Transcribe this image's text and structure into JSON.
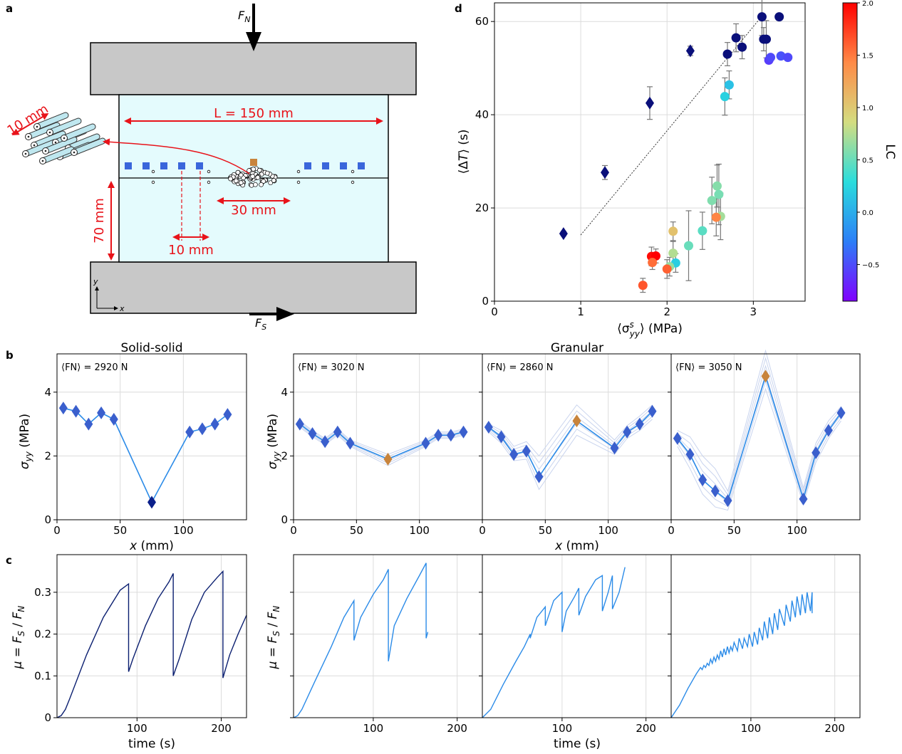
{
  "panel_labels": {
    "a": "a",
    "b": "b",
    "c": "c",
    "d": "d"
  },
  "schematic": {
    "force_normal": "F",
    "force_normal_sub": "N",
    "force_shear": "F",
    "force_shear_sub": "S",
    "length_label": "L = 150 mm",
    "height_label": "70 mm",
    "spacing_label": "10 mm",
    "gouge_label": "30 mm",
    "rod_label": "10 mm",
    "axis_y": "y",
    "axis_x": "x",
    "colors": {
      "platen": "#c8c8c8",
      "sample": "#e4fbfd",
      "sensor": "#3a66db",
      "gouge_sensor": "#c8843c",
      "dimension": "#e8131a"
    }
  },
  "panel_b": {
    "titles": [
      "Solid-solid",
      "Granular"
    ],
    "ylabel": "σyy (MPa)",
    "xlabel": "x (mm)",
    "xticks": [
      "0",
      "50",
      "100"
    ],
    "yticks": [
      "0",
      "2",
      "4"
    ],
    "annotations": [
      "⟨FN⟩ = 2920 N",
      "⟨FN⟩ = 3020 N",
      "⟨FN⟩ = 2860 N",
      "⟨FN⟩ = 3050 N"
    ]
  },
  "panel_c": {
    "ylabel": "μ = FS / FN",
    "xlabel": "time (s)",
    "xticks": [
      "100",
      "200"
    ],
    "yticks": [
      "0",
      "0.1",
      "0.2",
      "0.3"
    ]
  },
  "panel_d": {
    "xlabel": "⟨σyy^s⟩ (MPa)",
    "ylabel": "⟨ΔT⟩ (s)",
    "xticks": [
      "0",
      "1",
      "2",
      "3"
    ],
    "yticks": [
      "0",
      "20",
      "40",
      "60"
    ],
    "colorbar_label": "LC",
    "colorbar_ticks": [
      "2.0",
      "1.5",
      "1.0",
      "0.5",
      "0.0",
      "−0.5"
    ]
  },
  "chart_data": [
    {
      "id": "b1",
      "type": "line",
      "title": "Solid-solid",
      "xlabel": "x (mm)",
      "ylabel": "σyy (MPa)",
      "xlim": [
        0,
        150
      ],
      "ylim": [
        0,
        5.2
      ],
      "x": [
        5,
        15,
        25,
        35,
        45,
        75,
        105,
        115,
        125,
        135
      ],
      "values": [
        3.5,
        3.4,
        3.0,
        3.35,
        3.15,
        0.55,
        2.75,
        2.85,
        3.0,
        3.3
      ],
      "gouge_index": 5,
      "gouge_color": "#0b1f8a",
      "line_color": "#2b8be8",
      "marker_color": "#3a5fcd",
      "envelope": []
    },
    {
      "id": "b2",
      "type": "line",
      "xlabel": "x (mm)",
      "xlim": [
        0,
        150
      ],
      "ylim": [
        0,
        5.2
      ],
      "x": [
        5,
        15,
        25,
        35,
        45,
        75,
        105,
        115,
        125,
        135
      ],
      "values": [
        3.0,
        2.7,
        2.45,
        2.75,
        2.4,
        1.9,
        2.4,
        2.65,
        2.65,
        2.75
      ],
      "gouge_index": 5,
      "gouge_color": "#c8843c",
      "line_color": "#2b8be8",
      "marker_color": "#3a5fcd",
      "envelope": [
        [
          3.1,
          2.8,
          2.55,
          2.85,
          2.5,
          2.05,
          2.5,
          2.75,
          2.75,
          2.85
        ],
        [
          2.9,
          2.6,
          2.35,
          2.65,
          2.3,
          1.7,
          2.3,
          2.55,
          2.55,
          2.65
        ]
      ]
    },
    {
      "id": "b3",
      "type": "line",
      "xlabel": "x (mm)",
      "xlim": [
        0,
        150
      ],
      "ylim": [
        0,
        5.2
      ],
      "x": [
        5,
        15,
        25,
        35,
        45,
        75,
        105,
        115,
        125,
        135
      ],
      "values": [
        2.9,
        2.6,
        2.05,
        2.15,
        1.35,
        3.1,
        2.25,
        2.75,
        3.0,
        3.4
      ],
      "gouge_index": 5,
      "gouge_color": "#c8843c",
      "line_color": "#2b8be8",
      "marker_color": "#3a5fcd",
      "envelope": [
        [
          3.0,
          2.8,
          2.3,
          2.45,
          2.0,
          3.6,
          2.5,
          2.95,
          3.25,
          3.6
        ],
        [
          2.75,
          2.4,
          1.85,
          1.9,
          0.95,
          2.65,
          2.05,
          2.55,
          2.8,
          3.15
        ]
      ]
    },
    {
      "id": "b4",
      "type": "line",
      "xlabel": "x (mm)",
      "xlim": [
        0,
        150
      ],
      "ylim": [
        0,
        5.2
      ],
      "x": [
        5,
        15,
        25,
        35,
        45,
        75,
        105,
        115,
        125,
        135
      ],
      "values": [
        2.55,
        2.05,
        1.25,
        0.9,
        0.6,
        4.5,
        0.65,
        2.1,
        2.8,
        3.35
      ],
      "gouge_index": 5,
      "gouge_color": "#c8843c",
      "line_color": "#2b8be8",
      "marker_color": "#3a5fcd",
      "envelope": [
        [
          2.8,
          2.6,
          2.0,
          1.6,
          0.9,
          5.3,
          1.0,
          2.4,
          3.1,
          3.55
        ],
        [
          2.3,
          1.6,
          0.8,
          0.4,
          0.3,
          4.1,
          0.5,
          1.8,
          2.55,
          3.1
        ]
      ]
    },
    {
      "id": "c1",
      "type": "line",
      "xlabel": "time (s)",
      "ylabel": "μ = FS / FN",
      "xlim": [
        5,
        230
      ],
      "ylim": [
        0,
        0.39
      ],
      "color": "#0b1f70",
      "x": [
        5,
        10,
        15,
        20,
        40,
        60,
        80,
        90,
        90,
        95,
        110,
        125,
        138,
        143,
        143,
        150,
        165,
        180,
        195,
        202,
        202,
        210,
        220,
        230
      ],
      "values": [
        0,
        0.005,
        0.02,
        0.045,
        0.15,
        0.24,
        0.305,
        0.32,
        0.11,
        0.14,
        0.22,
        0.285,
        0.325,
        0.345,
        0.1,
        0.14,
        0.235,
        0.3,
        0.335,
        0.35,
        0.095,
        0.15,
        0.2,
        0.245
      ]
    },
    {
      "id": "c2",
      "type": "line",
      "xlabel": "time (s)",
      "xlim": [
        5,
        230
      ],
      "ylim": [
        0,
        0.39
      ],
      "color": "#2b8be8",
      "x": [
        5,
        10,
        15,
        30,
        50,
        65,
        77,
        77,
        85,
        100,
        112,
        118,
        118,
        125,
        140,
        155,
        163,
        163,
        165
      ],
      "values": [
        0,
        0.005,
        0.02,
        0.085,
        0.17,
        0.24,
        0.28,
        0.185,
        0.24,
        0.295,
        0.33,
        0.355,
        0.135,
        0.22,
        0.285,
        0.34,
        0.37,
        0.19,
        0.205
      ]
    },
    {
      "id": "c3",
      "type": "line",
      "xlabel": "time (s)",
      "xlim": [
        5,
        230
      ],
      "ylim": [
        0,
        0.39
      ],
      "color": "#2b8be8",
      "x": [
        5,
        15,
        30,
        45,
        55,
        62,
        62,
        70,
        80,
        80,
        90,
        100,
        100,
        105,
        115,
        120,
        120,
        128,
        140,
        148,
        148,
        155,
        160,
        160,
        168,
        175
      ],
      "values": [
        0,
        0.02,
        0.08,
        0.135,
        0.17,
        0.2,
        0.19,
        0.24,
        0.265,
        0.22,
        0.28,
        0.3,
        0.205,
        0.255,
        0.29,
        0.31,
        0.245,
        0.29,
        0.33,
        0.34,
        0.255,
        0.3,
        0.34,
        0.26,
        0.3,
        0.36
      ]
    },
    {
      "id": "c4",
      "type": "line",
      "xlabel": "time (s)",
      "xlim": [
        5,
        230
      ],
      "ylim": [
        0,
        0.39
      ],
      "color": "#2b8be8",
      "x": [
        5,
        15,
        25,
        35,
        40,
        42,
        44,
        46,
        48,
        50,
        52,
        54,
        56,
        58,
        60,
        62,
        64,
        66,
        68,
        70,
        72,
        74,
        76,
        78,
        80,
        84,
        86,
        90,
        92,
        96,
        98,
        102,
        104,
        108,
        110,
        114,
        116,
        120,
        122,
        126,
        128,
        132,
        134,
        140,
        142,
        147,
        149,
        153,
        155,
        159,
        161,
        165,
        167,
        171,
        173,
        173
      ],
      "values": [
        0,
        0.03,
        0.07,
        0.105,
        0.12,
        0.115,
        0.125,
        0.12,
        0.13,
        0.125,
        0.14,
        0.13,
        0.145,
        0.135,
        0.15,
        0.14,
        0.16,
        0.145,
        0.165,
        0.15,
        0.17,
        0.155,
        0.17,
        0.16,
        0.18,
        0.16,
        0.19,
        0.165,
        0.19,
        0.17,
        0.2,
        0.17,
        0.205,
        0.175,
        0.215,
        0.185,
        0.23,
        0.19,
        0.24,
        0.2,
        0.25,
        0.21,
        0.26,
        0.22,
        0.27,
        0.23,
        0.28,
        0.24,
        0.29,
        0.245,
        0.295,
        0.25,
        0.3,
        0.255,
        0.3,
        0.25
      ]
    },
    {
      "id": "d",
      "type": "scatter",
      "xlabel": "⟨σyy^s⟩ (MPa)",
      "ylabel": "⟨ΔT⟩ (s)",
      "xlim": [
        0,
        3.6
      ],
      "ylim": [
        0,
        64
      ],
      "colorbar": {
        "label": "LC",
        "range": [
          -0.85,
          2.0
        ],
        "colormap": "rainbow"
      },
      "fit_line": {
        "x": [
          1.0,
          3.12
        ],
        "y": [
          14.2,
          61.6
        ]
      },
      "solid_solid_points": [
        {
          "x": 0.8,
          "y": 14.5,
          "err": 0.5
        },
        {
          "x": 1.28,
          "y": 27.6,
          "err": 1.5
        },
        {
          "x": 1.8,
          "y": 42.5,
          "err": 3.5
        },
        {
          "x": 2.27,
          "y": 53.7,
          "err": 1.0
        }
      ],
      "granular_points": [
        {
          "x": 2.7,
          "y": 53.0,
          "err": 2.5,
          "c": -0.72
        },
        {
          "x": 2.8,
          "y": 56.5,
          "err": 3.0,
          "c": -0.72
        },
        {
          "x": 2.87,
          "y": 54.5,
          "err": 2.5,
          "c": -0.72
        },
        {
          "x": 3.1,
          "y": 61.0,
          "err": 4.0,
          "c": -0.72
        },
        {
          "x": 3.12,
          "y": 56.2,
          "err": 2.5,
          "c": -0.72
        },
        {
          "x": 3.15,
          "y": 56.2,
          "err": 4.0,
          "c": -0.72
        },
        {
          "x": 3.3,
          "y": 61.0,
          "err": 0.0,
          "c": -0.72
        },
        {
          "x": 3.18,
          "y": 51.7,
          "err": 0.0,
          "c": -0.58
        },
        {
          "x": 3.2,
          "y": 52.3,
          "err": 0.0,
          "c": -0.52
        },
        {
          "x": 3.32,
          "y": 52.6,
          "err": 0.0,
          "c": -0.48
        },
        {
          "x": 3.4,
          "y": 52.3,
          "err": 0.0,
          "c": -0.52
        },
        {
          "x": 2.72,
          "y": 46.4,
          "err": 3.0,
          "c": 0.12
        },
        {
          "x": 2.67,
          "y": 43.9,
          "err": 4.0,
          "c": 0.22
        },
        {
          "x": 2.58,
          "y": 24.7,
          "err": 4.5,
          "c": 0.6
        },
        {
          "x": 2.6,
          "y": 22.9,
          "err": 6.5,
          "c": 0.55
        },
        {
          "x": 2.52,
          "y": 21.6,
          "err": 5.0,
          "c": 0.58
        },
        {
          "x": 2.62,
          "y": 18.2,
          "err": 5.0,
          "c": 0.7
        },
        {
          "x": 2.57,
          "y": 18.0,
          "err": 4.0,
          "c": 1.45
        },
        {
          "x": 2.41,
          "y": 15.1,
          "err": 4.0,
          "c": 0.45
        },
        {
          "x": 2.25,
          "y": 11.9,
          "err": 7.5,
          "c": 0.5
        },
        {
          "x": 2.07,
          "y": 15.0,
          "err": 2.0,
          "c": 1.05
        },
        {
          "x": 2.07,
          "y": 10.3,
          "err": 2.5,
          "c": 0.75
        },
        {
          "x": 2.1,
          "y": 8.2,
          "err": 2.0,
          "c": 0.2
        },
        {
          "x": 2.03,
          "y": 7.4,
          "err": 2.0,
          "c": 0.65
        },
        {
          "x": 2.0,
          "y": 6.9,
          "err": 2.0,
          "c": 1.6
        },
        {
          "x": 1.82,
          "y": 9.6,
          "err": 2.0,
          "c": 1.95
        },
        {
          "x": 1.87,
          "y": 9.7,
          "err": 1.5,
          "c": 2.0
        },
        {
          "x": 1.83,
          "y": 8.3,
          "err": 1.5,
          "c": 1.55
        },
        {
          "x": 1.72,
          "y": 3.4,
          "err": 1.5,
          "c": 1.65
        }
      ]
    }
  ]
}
